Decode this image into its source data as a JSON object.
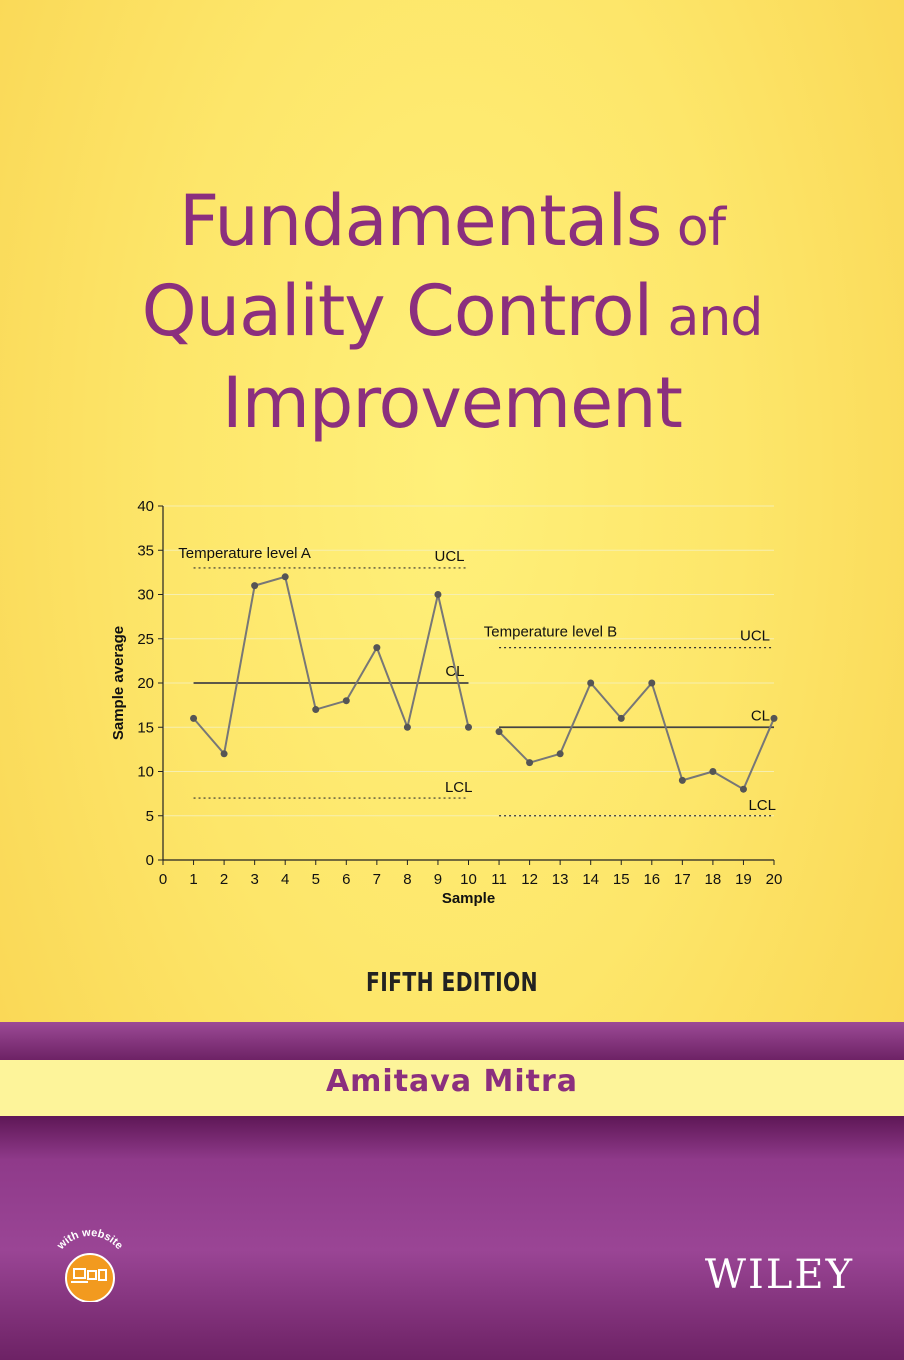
{
  "title": {
    "line1_big": "Fundamentals",
    "line1_small": " of",
    "line2_big": "Quality Control",
    "line2_small": " and",
    "line3_big": "Improvement"
  },
  "edition": "FIFTH EDITION",
  "author": "Amitava Mitra",
  "publisher": "WILEY",
  "badge_text": "with website",
  "colors": {
    "title": "#8b2f7e",
    "background": "#fde66a",
    "band": "#8f3a8a",
    "author_band": "#fdf49a"
  },
  "chart_data": {
    "type": "line",
    "xlabel": "Sample",
    "ylabel": "Sample average",
    "xlim": [
      0,
      20
    ],
    "ylim": [
      0,
      40
    ],
    "xticks": [
      0,
      1,
      2,
      3,
      4,
      5,
      6,
      7,
      8,
      9,
      10,
      11,
      12,
      13,
      14,
      15,
      16,
      17,
      18,
      19,
      20
    ],
    "yticks": [
      0,
      5,
      10,
      15,
      20,
      25,
      30,
      35,
      40
    ],
    "grid": true,
    "segments": [
      {
        "annotation": "Temperature level A",
        "x": [
          1,
          2,
          3,
          4,
          5,
          6,
          7,
          8,
          9,
          10
        ],
        "values": [
          16,
          12,
          31,
          32,
          17,
          18,
          24,
          15,
          30,
          15
        ],
        "ucl": 33,
        "cl": 20,
        "lcl": 7,
        "ucl_label": "UCL",
        "cl_label": "CL",
        "lcl_label": "LCL"
      },
      {
        "annotation": "Temperature level B",
        "x": [
          11,
          12,
          13,
          14,
          15,
          16,
          17,
          18,
          19,
          20
        ],
        "values": [
          14.5,
          11,
          12,
          20,
          16,
          20,
          9,
          10,
          8,
          16
        ],
        "ucl": 24,
        "cl": 15,
        "lcl": 5,
        "ucl_label": "UCL",
        "cl_label": "CL",
        "lcl_label": "LCL"
      }
    ]
  }
}
